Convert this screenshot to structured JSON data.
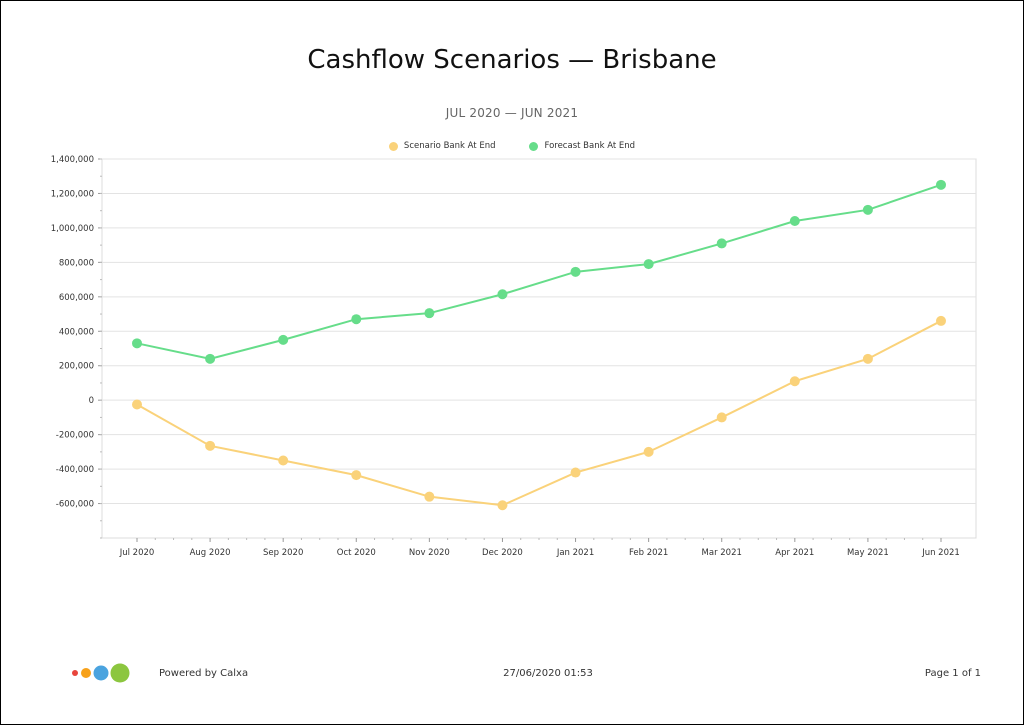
{
  "report": {
    "title": "Cashflow Scenarios — Brisbane",
    "subtitle": "JUL 2020 — JUN 2021"
  },
  "footer": {
    "powered_by": "Powered by Calxa",
    "timestamp": "27/06/2020 01:53",
    "page_info": "Page 1 of 1",
    "logo_colors": [
      "#e8453c",
      "#f7a11a",
      "#4aa3df",
      "#8cc63f"
    ]
  },
  "chart_data": {
    "type": "line",
    "categories": [
      "Jul 2020",
      "Aug 2020",
      "Sep 2020",
      "Oct 2020",
      "Nov 2020",
      "Dec 2020",
      "Jan 2021",
      "Feb 2021",
      "Mar 2021",
      "Apr 2021",
      "May 2021",
      "Jun 2021"
    ],
    "series": [
      {
        "name": "Scenario Bank At End",
        "color": "#fad27a",
        "values": [
          -25000,
          -265000,
          -350000,
          -435000,
          -560000,
          -610000,
          -420000,
          -300000,
          -100000,
          110000,
          240000,
          460000
        ]
      },
      {
        "name": "Forecast Bank At End",
        "color": "#66dd8a",
        "values": [
          330000,
          240000,
          350000,
          470000,
          505000,
          615000,
          745000,
          790000,
          910000,
          1040000,
          1105000,
          1250000
        ]
      }
    ],
    "yticks": [
      "1,400,000",
      "1,200,000",
      "1,000,000",
      "800,000",
      "600,000",
      "400,000",
      "200,000",
      "0",
      "-200,000",
      "-400,000",
      "-600,000"
    ],
    "ylim": [
      -800000,
      1400000
    ],
    "grid": true,
    "legend_position": "top-center",
    "xlabel": "",
    "ylabel": ""
  }
}
